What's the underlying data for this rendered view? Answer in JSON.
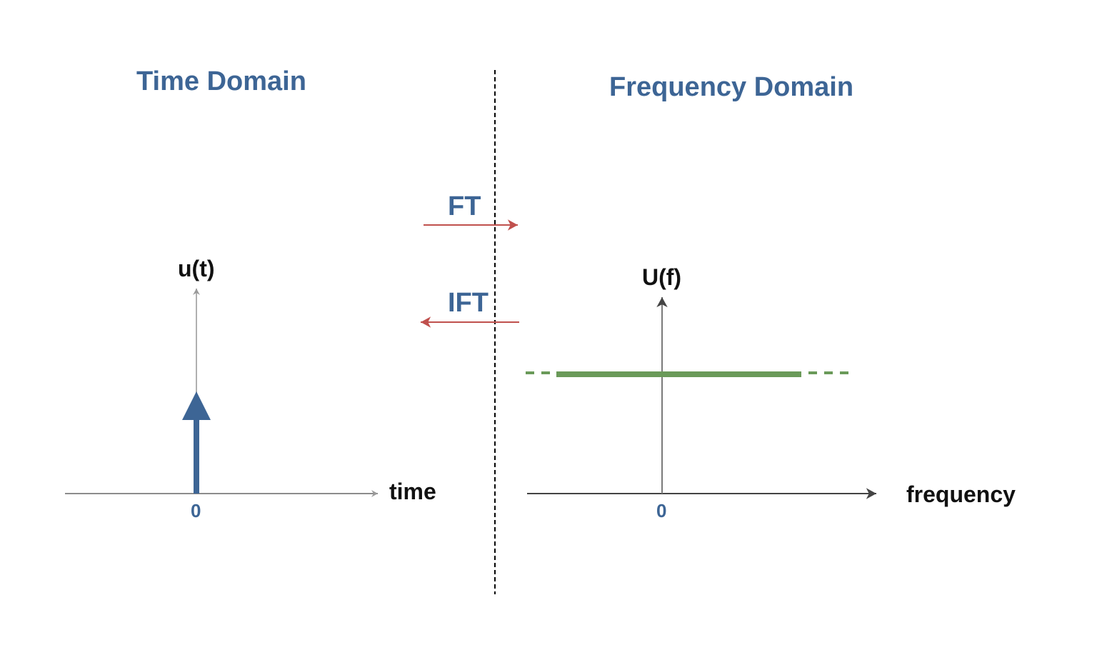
{
  "panels": {
    "time": {
      "title": "Time Domain",
      "y_label": "u(t)",
      "x_label": "time",
      "origin_tick": "0"
    },
    "frequency": {
      "title": "Frequency Domain",
      "y_label": "U(f)",
      "x_label": "frequency",
      "origin_tick": "0"
    }
  },
  "transforms": {
    "forward": "FT",
    "inverse": "IFT"
  },
  "colors": {
    "title": "#3d6595",
    "impulse": "#3d6595",
    "spectrum": "#6a9a59",
    "transform_arrow": "#c0504d",
    "axis_text": "#111111",
    "divider": "#000000"
  }
}
